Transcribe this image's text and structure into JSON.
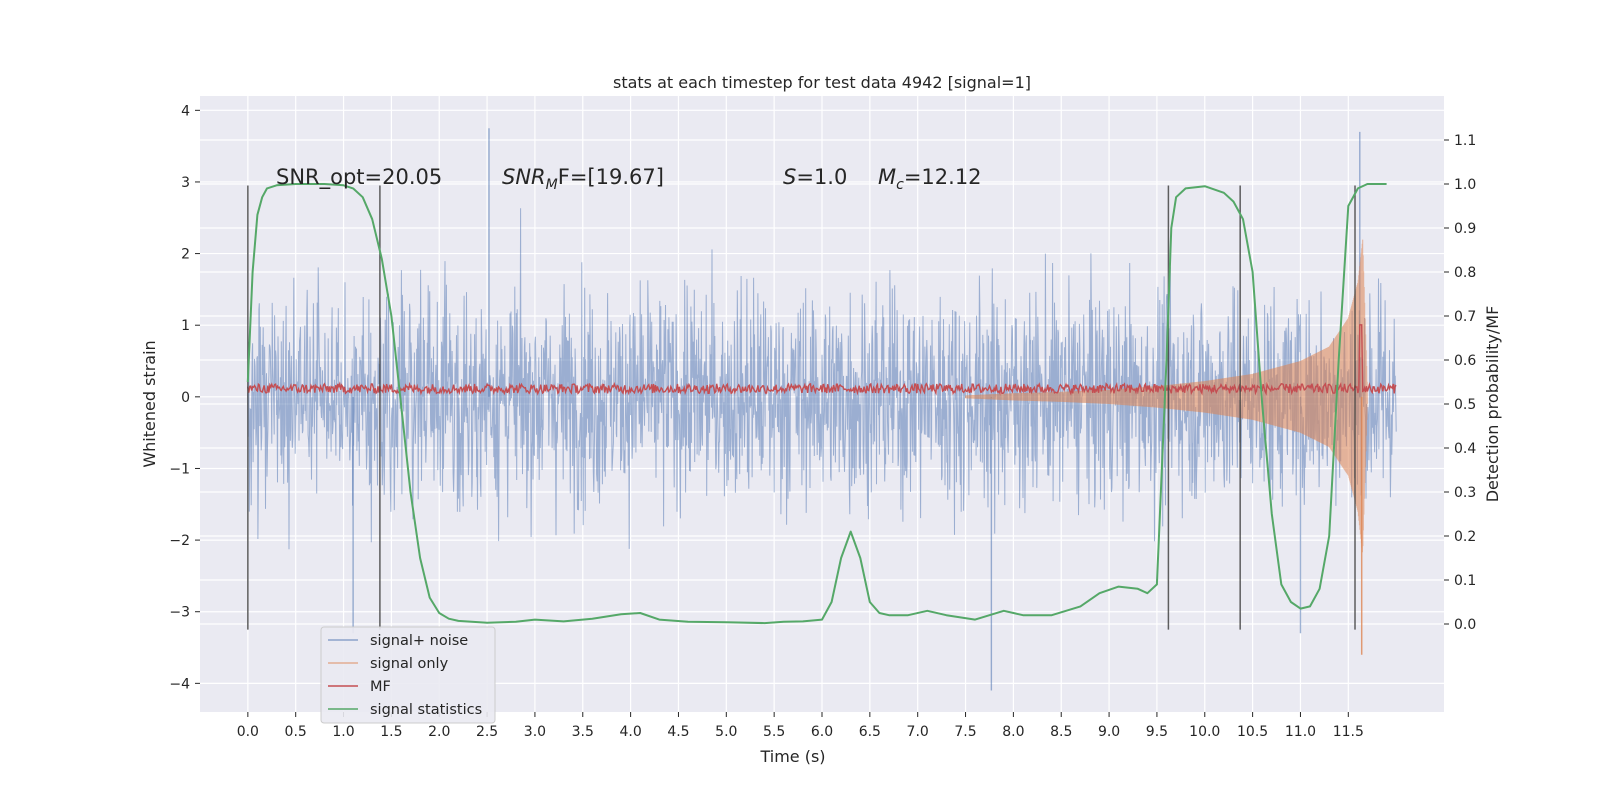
{
  "chart_data": {
    "type": "line",
    "title": "stats at each timestep for test data 4942 [signal=1]",
    "xlabel": "Time (s)",
    "ylabel": "Whitened strain",
    "y2label": "Detection probability/MF",
    "xlim": [
      -0.5,
      12.5
    ],
    "ylim": [
      -4.4,
      4.2
    ],
    "y2lim": [
      -0.2,
      1.2
    ],
    "x_ticks": [
      "0.0",
      "0.5",
      "1.0",
      "1.5",
      "2.0",
      "2.5",
      "3.0",
      "3.5",
      "4.0",
      "4.5",
      "5.0",
      "5.5",
      "6.0",
      "6.5",
      "7.0",
      "7.5",
      "8.0",
      "8.5",
      "9.0",
      "9.5",
      "10.0",
      "10.5",
      "11.0",
      "11.5"
    ],
    "y_ticks": [
      "4",
      "3",
      "2",
      "1",
      "0",
      "−1",
      "−2",
      "−3",
      "−4"
    ],
    "y2_ticks": [
      "1.1",
      "1.0",
      "0.9",
      "0.8",
      "0.7",
      "0.6",
      "0.5",
      "0.4",
      "0.3",
      "0.2",
      "0.1",
      "0.0"
    ],
    "grid": true,
    "legend_position": "lower-left",
    "annotations": {
      "snr_opt": "SNR_opt=20.05",
      "snr_mf_name": "SNR",
      "snr_mf_sub": "M",
      "snr_mf_value": "F=[19.67]",
      "s_name": "S",
      "s_value": "=1.0",
      "mc_name": "M",
      "mc_sub": "c",
      "mc_value": "=12.12"
    },
    "colors": {
      "signal_noise": "#4c72b0",
      "signal_only": "#dd8452",
      "mf": "#c44e52",
      "statistics": "#55a868",
      "markers": "#444444"
    },
    "series": [
      {
        "name": "signal+ noise",
        "axis": "left",
        "description_stats": {
          "x_range": [
            0.0,
            12.0
          ],
          "typical_envelope": [
            -2.0,
            2.3
          ],
          "max": 3.75,
          "min": -4.1
        }
      },
      {
        "name": "signal only",
        "axis": "left",
        "x": [
          7.5,
          8.0,
          8.5,
          9.0,
          9.5,
          10.0,
          10.5,
          11.0,
          11.3,
          11.5,
          11.6,
          11.65,
          11.7
        ],
        "envelope": [
          0.02,
          0.05,
          0.07,
          0.1,
          0.15,
          0.22,
          0.32,
          0.5,
          0.7,
          1.1,
          1.6,
          2.2,
          0.1
        ],
        "min": -3.6
      },
      {
        "name": "MF",
        "axis": "right",
        "base": 0.535,
        "spike": {
          "x": 11.63,
          "y": 0.68
        }
      },
      {
        "name": "signal statistics",
        "axis": "right",
        "x": [
          0.0,
          0.05,
          0.1,
          0.15,
          0.2,
          0.3,
          0.5,
          0.8,
          1.0,
          1.1,
          1.2,
          1.3,
          1.4,
          1.5,
          1.6,
          1.7,
          1.8,
          1.9,
          2.0,
          2.1,
          2.2,
          2.5,
          2.8,
          3.0,
          3.3,
          3.6,
          3.9,
          4.1,
          4.3,
          4.6,
          5.0,
          5.4,
          5.6,
          5.8,
          6.0,
          6.1,
          6.2,
          6.3,
          6.4,
          6.5,
          6.6,
          6.7,
          6.9,
          7.1,
          7.3,
          7.6,
          7.9,
          8.1,
          8.4,
          8.7,
          8.9,
          9.1,
          9.3,
          9.4,
          9.5,
          9.6,
          9.65,
          9.7,
          9.8,
          10.0,
          10.2,
          10.3,
          10.4,
          10.5,
          10.6,
          10.7,
          10.8,
          10.9,
          11.0,
          11.1,
          11.2,
          11.3,
          11.4,
          11.5,
          11.6,
          11.7,
          11.8,
          11.9
        ],
        "y": [
          0.55,
          0.8,
          0.93,
          0.97,
          0.99,
          0.997,
          1.0,
          1.0,
          0.997,
          0.99,
          0.97,
          0.92,
          0.83,
          0.7,
          0.5,
          0.3,
          0.15,
          0.06,
          0.025,
          0.012,
          0.007,
          0.003,
          0.005,
          0.01,
          0.006,
          0.012,
          0.022,
          0.025,
          0.01,
          0.005,
          0.004,
          0.002,
          0.005,
          0.006,
          0.01,
          0.05,
          0.15,
          0.21,
          0.15,
          0.05,
          0.025,
          0.02,
          0.02,
          0.03,
          0.02,
          0.01,
          0.03,
          0.02,
          0.02,
          0.04,
          0.07,
          0.085,
          0.08,
          0.07,
          0.09,
          0.6,
          0.9,
          0.97,
          0.99,
          0.995,
          0.98,
          0.96,
          0.92,
          0.8,
          0.5,
          0.25,
          0.09,
          0.05,
          0.035,
          0.04,
          0.08,
          0.2,
          0.6,
          0.95,
          0.99,
          1.0,
          1.0,
          1.0
        ]
      }
    ],
    "vertical_markers_x": [
      0.0,
      1.38,
      9.62,
      10.37,
      11.57
    ]
  }
}
